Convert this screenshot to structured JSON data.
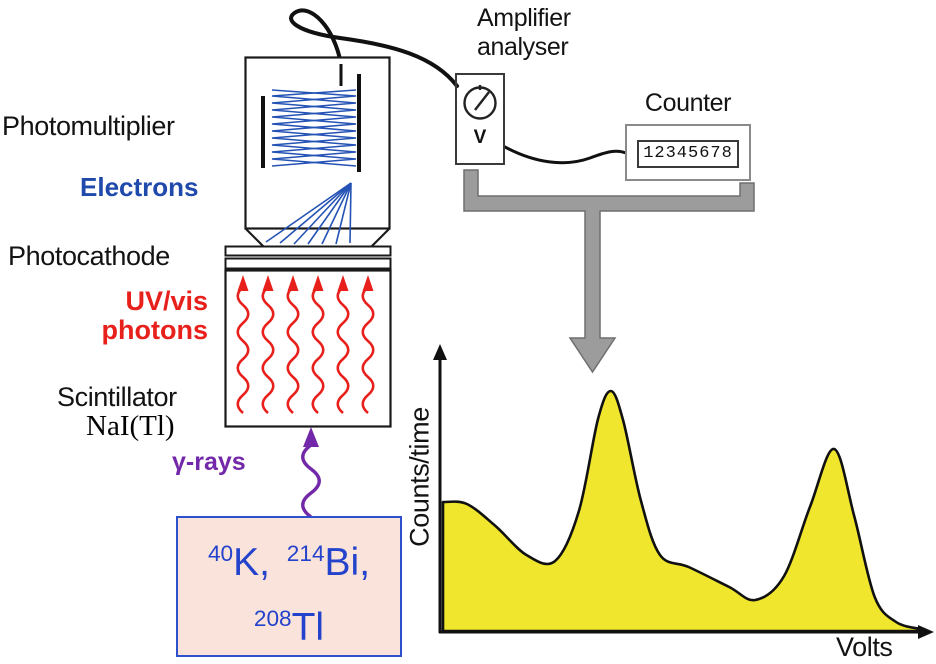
{
  "detector": {
    "photomultiplier_label": "Photomultiplier",
    "electrons_label": "Electrons",
    "photocathode_label": "Photocathode",
    "uv_vis_line1": "UV/vis",
    "uv_vis_line2": "photons",
    "scintillator_label": "Scintillator",
    "crystal_label": "NaI(Tl)",
    "gamma_label": "γ-rays"
  },
  "electronics": {
    "amplifier_label_line1": "Amplifier",
    "amplifier_label_line2": "analyser",
    "voltmeter_symbol": "V",
    "counter_label": "Counter",
    "counter_reading": "12345678"
  },
  "source": {
    "comma": ",",
    "isotopes": [
      {
        "mass_number": "40",
        "symbol": "K"
      },
      {
        "mass_number": "214",
        "symbol": "Bi"
      },
      {
        "mass_number": "208",
        "symbol": "Tl"
      }
    ]
  },
  "chart_data": {
    "type": "area",
    "xlabel": "Volts",
    "ylabel": "Counts/time",
    "x_range": [
      0,
      1
    ],
    "y_range": [
      0,
      260
    ],
    "grid": false,
    "legend": false,
    "curve_color": "#f0e62e",
    "points": [
      [
        0.0,
        129
      ],
      [
        0.05,
        127
      ],
      [
        0.11,
        105
      ],
      [
        0.175,
        76
      ],
      [
        0.235,
        70
      ],
      [
        0.285,
        120
      ],
      [
        0.325,
        212
      ],
      [
        0.352,
        240
      ],
      [
        0.378,
        210
      ],
      [
        0.415,
        130
      ],
      [
        0.455,
        76
      ],
      [
        0.515,
        64
      ],
      [
        0.6,
        44
      ],
      [
        0.655,
        31
      ],
      [
        0.715,
        55
      ],
      [
        0.77,
        125
      ],
      [
        0.82,
        182
      ],
      [
        0.862,
        115
      ],
      [
        0.905,
        34
      ],
      [
        0.95,
        9
      ],
      [
        1.0,
        2
      ]
    ]
  },
  "colors": {
    "label_black": "#131313",
    "electron_blue": "#1f49ab",
    "photon_red": "#e8201c",
    "gamma_purple": "#7228a8",
    "spectrum_yellow": "#f0e62e",
    "flow_arrow_gray": "#9c9c9c",
    "source_text_blue": "#2343cc",
    "source_box_background": "#fae3da",
    "source_box_border": "#2d50cc"
  }
}
